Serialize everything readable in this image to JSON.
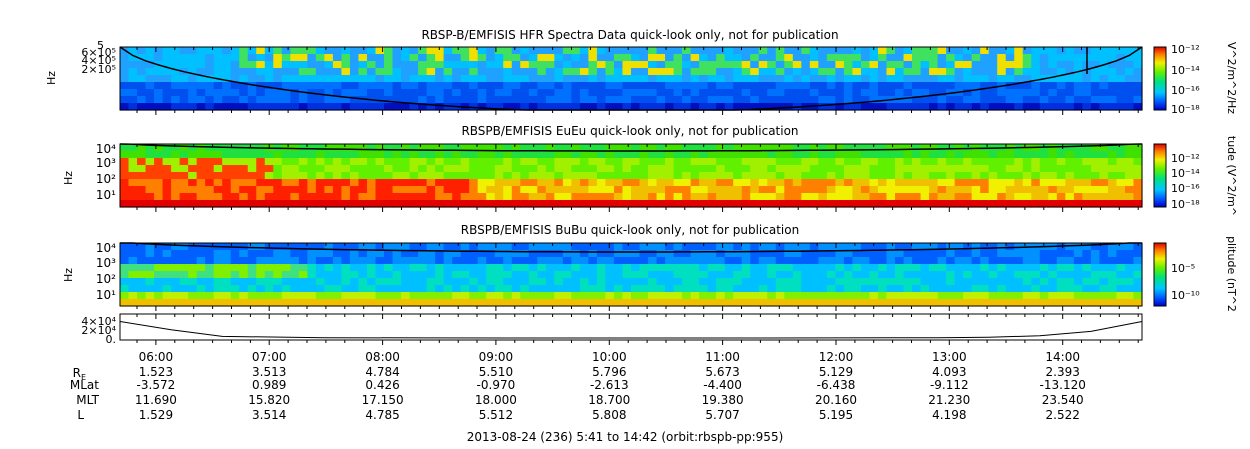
{
  "chart_data": [
    {
      "type": "heatmap",
      "title": "RBSP-B/EMFISIS  HFR Spectra Data quick-look only, not for publication",
      "ylabel": "Hz",
      "y_tick_labels": [
        "6×10⁵",
        "4×10⁵",
        "2×10⁵",
        "5"
      ],
      "colorbar_label": "V^2/m^2/Hz",
      "colorbar_ticks": [
        "10⁻¹²",
        "10⁻¹⁴",
        "10⁻¹⁶",
        "10⁻¹⁸"
      ],
      "colorbar_range_log10": [
        -18,
        -12
      ],
      "overlay_curve": "Fce"
    },
    {
      "type": "heatmap",
      "title": "RBSPB/EMFISIS  EuEu quick-look only, not for publication",
      "ylabel": "Hz",
      "y_tick_labels": [
        "10⁴",
        "10³",
        "10²",
        "10¹"
      ],
      "y_range_log10": [
        0,
        4
      ],
      "colorbar_label": "tude (V^2/m^",
      "colorbar_ticks": [
        "10⁻¹²",
        "10⁻¹⁴",
        "10⁻¹⁶",
        "10⁻¹⁸"
      ],
      "colorbar_range_log10": [
        -18,
        -12
      ],
      "overlay_curve": "Fce"
    },
    {
      "type": "heatmap",
      "title": "RBSPB/EMFISIS  BuBu quick-look only, not for publication",
      "ylabel": "Hz",
      "y_tick_labels": [
        "10⁴",
        "10³",
        "10²",
        "10¹"
      ],
      "y_range_log10": [
        0,
        4
      ],
      "colorbar_label": "plitude (nT^2",
      "colorbar_ticks": [
        "10⁻⁵",
        "10⁻¹⁰"
      ],
      "colorbar_range_log10": [
        -12,
        -3
      ],
      "overlay_curve": "Fce"
    },
    {
      "type": "line",
      "title": "",
      "y_tick_labels": [
        "4×10⁴",
        "2×10⁴",
        "0."
      ],
      "ylim": [
        0,
        40000
      ],
      "x": [
        0,
        0.05,
        0.1,
        0.2,
        0.3,
        0.4,
        0.5,
        0.6,
        0.7,
        0.8,
        0.85,
        0.9,
        0.95,
        1.0
      ],
      "y": [
        30000,
        15000,
        3000,
        500,
        100,
        50,
        40,
        50,
        100,
        600,
        1500,
        4000,
        12000,
        30000
      ]
    }
  ],
  "x_axis": {
    "tick_labels": [
      "06:00",
      "07:00",
      "08:00",
      "09:00",
      "10:00",
      "11:00",
      "12:00",
      "13:00",
      "14:00"
    ],
    "start_hour": 5.6833,
    "end_hour": 14.7
  },
  "ephemeris": {
    "rows": [
      {
        "label": "R",
        "sub": "E",
        "values": [
          "1.523",
          "3.513",
          "4.784",
          "5.510",
          "5.796",
          "5.673",
          "5.129",
          "4.093",
          "2.393"
        ]
      },
      {
        "label": "MLat",
        "sub": "",
        "values": [
          "-3.572",
          "0.989",
          "0.426",
          "-0.970",
          "-2.613",
          "-4.400",
          "-6.438",
          "-9.112",
          "-13.120"
        ]
      },
      {
        "label": "MLT",
        "sub": "",
        "values": [
          "11.690",
          "15.820",
          "17.150",
          "18.000",
          "18.700",
          "19.380",
          "20.160",
          "21.230",
          "23.540"
        ]
      },
      {
        "label": "L",
        "sub": "",
        "values": [
          "1.529",
          "3.514",
          "4.785",
          "5.512",
          "5.808",
          "5.707",
          "5.195",
          "4.198",
          "2.522"
        ]
      }
    ]
  },
  "footer": "2013-08-24 (236) 5:41 to 14:42 (orbit:rbspb-pp:955)"
}
